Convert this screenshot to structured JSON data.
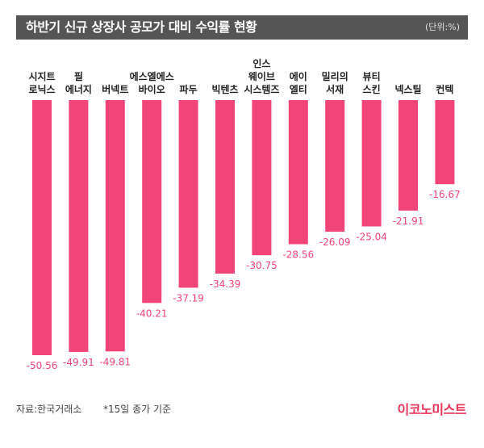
{
  "header": {
    "title": "하반기 신규 상장사 공모가 대비 수익률 현황",
    "unit": "(단위:%)"
  },
  "footer": {
    "source": "자료:한국거래소",
    "note": "*15일 종가 기준",
    "brand": "이코노미스트"
  },
  "colors": {
    "bar": "#f24577",
    "value_label": "#f24577",
    "title_bg": "#555555"
  },
  "chart_data": {
    "type": "bar",
    "categories": [
      [
        "시지트",
        "로닉스"
      ],
      [
        "필",
        "에너지"
      ],
      [
        "버넥트"
      ],
      [
        "에스엘에스",
        "바이오"
      ],
      [
        "파두"
      ],
      [
        "빅텐츠"
      ],
      [
        "인스",
        "웨이브",
        "시스템즈"
      ],
      [
        "에이",
        "엘티"
      ],
      [
        "밀리의",
        "서재"
      ],
      [
        "뷰티",
        "스킨"
      ],
      [
        "넥스틸"
      ],
      [
        "컨텍"
      ]
    ],
    "values": [
      -50.56,
      -49.91,
      -49.81,
      -40.21,
      -37.19,
      -34.39,
      -30.75,
      -28.56,
      -26.09,
      -25.04,
      -21.91,
      -16.67
    ],
    "value_labels": [
      "-50.56",
      "-49.91",
      "-49.81",
      "-40.21",
      "-37.19",
      "-34.39",
      "-30.75",
      "-28.56",
      "-26.09",
      "-25.04",
      "-21.91",
      "-16.67"
    ]
  }
}
